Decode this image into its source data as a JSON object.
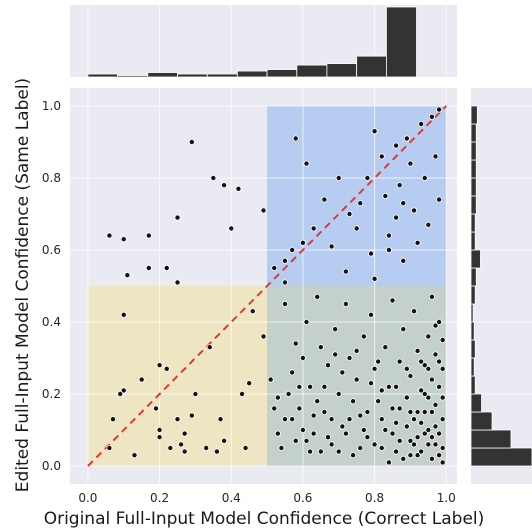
{
  "chart_data": {
    "type": "scatter",
    "xlabel": "Original Full-Input Model Confidence (Correct Label)",
    "ylabel": "Edited Full-Input Model Confidence (Same Label)",
    "xlim": [
      -0.05,
      1.03
    ],
    "ylim": [
      -0.05,
      1.05
    ],
    "xticks": [
      "0.0",
      "0.2",
      "0.4",
      "0.6",
      "0.8",
      "1.0"
    ],
    "yticks": [
      "0.0",
      "0.2",
      "0.4",
      "0.6",
      "0.8",
      "1.0"
    ],
    "grid": true,
    "colors": {
      "background": "#eaeaf2",
      "points": "#111111",
      "diagonal": "#e03a32",
      "region_blue": "#aec7f1",
      "region_yellow": "#eee5bb",
      "region_green": "#bdcbc4",
      "histogram": "#333333"
    },
    "regions": [
      {
        "x": [
          0.5,
          1.0
        ],
        "y": [
          0.5,
          1.0
        ],
        "color": "#aec7f1"
      },
      {
        "x": [
          0.0,
          0.5
        ],
        "y": [
          0.0,
          0.5
        ],
        "color": "#eee5bb"
      },
      {
        "x": [
          0.5,
          1.0
        ],
        "y": [
          0.0,
          0.5
        ],
        "color": "#bdcbc4"
      }
    ],
    "diagonal": {
      "from": [
        0,
        0
      ],
      "to": [
        1,
        1
      ],
      "style": "dashed"
    },
    "top_histogram": {
      "bins": [
        0.0,
        0.083,
        0.167,
        0.25,
        0.333,
        0.417,
        0.5,
        0.583,
        0.667,
        0.75,
        0.833,
        0.917,
        1.0
      ],
      "counts": [
        2,
        1,
        3,
        2,
        2,
        4,
        5,
        8,
        9,
        14,
        47,
        0
      ]
    },
    "right_histogram": {
      "bins": [
        0.0,
        0.05,
        0.1,
        0.15,
        0.2,
        0.25,
        0.3,
        0.35,
        0.4,
        0.45,
        0.5,
        0.55,
        0.6,
        0.65,
        0.7,
        0.75,
        0.8,
        0.85,
        0.9,
        0.95,
        1.0
      ],
      "counts": [
        58,
        38,
        20,
        10,
        4,
        3,
        4,
        3,
        2,
        4,
        5,
        9,
        4,
        4,
        5,
        5,
        5,
        5,
        5,
        6
      ]
    },
    "points": [
      [
        0.06,
        0.64
      ],
      [
        0.1,
        0.63
      ],
      [
        0.17,
        0.64
      ],
      [
        0.29,
        0.9
      ],
      [
        0.35,
        0.8
      ],
      [
        0.38,
        0.78
      ],
      [
        0.42,
        0.77
      ],
      [
        0.25,
        0.69
      ],
      [
        0.4,
        0.66
      ],
      [
        0.49,
        0.71
      ],
      [
        0.11,
        0.53
      ],
      [
        0.17,
        0.55
      ],
      [
        0.22,
        0.55
      ],
      [
        0.25,
        0.51
      ],
      [
        0.58,
        0.91
      ],
      [
        0.61,
        0.84
      ],
      [
        0.55,
        0.57
      ],
      [
        0.57,
        0.6
      ],
      [
        0.6,
        0.62
      ],
      [
        0.63,
        0.66
      ],
      [
        0.66,
        0.74
      ],
      [
        0.68,
        0.61
      ],
      [
        0.7,
        0.8
      ],
      [
        0.73,
        0.7
      ],
      [
        0.75,
        0.66
      ],
      [
        0.76,
        0.73
      ],
      [
        0.78,
        0.8
      ],
      [
        0.79,
        0.59
      ],
      [
        0.8,
        0.52
      ],
      [
        0.82,
        0.86
      ],
      [
        0.83,
        0.75
      ],
      [
        0.84,
        0.64
      ],
      [
        0.86,
        0.89
      ],
      [
        0.86,
        0.69
      ],
      [
        0.87,
        0.78
      ],
      [
        0.88,
        0.57
      ],
      [
        0.89,
        0.91
      ],
      [
        0.9,
        0.84
      ],
      [
        0.91,
        0.71
      ],
      [
        0.92,
        0.62
      ],
      [
        0.93,
        0.95
      ],
      [
        0.94,
        0.8
      ],
      [
        0.95,
        0.67
      ],
      [
        0.96,
        0.97
      ],
      [
        0.97,
        0.86
      ],
      [
        0.98,
        0.74
      ],
      [
        0.98,
        0.99
      ],
      [
        0.52,
        0.55
      ],
      [
        0.55,
        0.51
      ],
      [
        0.88,
        0.73
      ],
      [
        0.8,
        0.93
      ],
      [
        0.72,
        0.54
      ],
      [
        0.84,
        0.6
      ],
      [
        0.1,
        0.42
      ],
      [
        0.06,
        0.05
      ],
      [
        0.07,
        0.13
      ],
      [
        0.1,
        0.21
      ],
      [
        0.09,
        0.2
      ],
      [
        0.13,
        0.03
      ],
      [
        0.2,
        0.08
      ],
      [
        0.2,
        0.1
      ],
      [
        0.2,
        0.28
      ],
      [
        0.22,
        0.27
      ],
      [
        0.25,
        0.13
      ],
      [
        0.26,
        0.06
      ],
      [
        0.27,
        0.09
      ],
      [
        0.29,
        0.14
      ],
      [
        0.3,
        0.2
      ],
      [
        0.33,
        0.05
      ],
      [
        0.34,
        0.33
      ],
      [
        0.36,
        0.04
      ],
      [
        0.37,
        0.13
      ],
      [
        0.38,
        0.07
      ],
      [
        0.43,
        0.2
      ],
      [
        0.45,
        0.23
      ],
      [
        0.44,
        0.05
      ],
      [
        0.46,
        0.43
      ],
      [
        0.49,
        0.36
      ],
      [
        0.19,
        0.16
      ],
      [
        0.23,
        0.05
      ],
      [
        0.15,
        0.24
      ],
      [
        0.27,
        0.04
      ],
      [
        0.51,
        0.24
      ],
      [
        0.53,
        0.19
      ],
      [
        0.55,
        0.45
      ],
      [
        0.55,
        0.13
      ],
      [
        0.57,
        0.26
      ],
      [
        0.58,
        0.34
      ],
      [
        0.59,
        0.16
      ],
      [
        0.6,
        0.3
      ],
      [
        0.61,
        0.4
      ],
      [
        0.62,
        0.22
      ],
      [
        0.63,
        0.09
      ],
      [
        0.64,
        0.47
      ],
      [
        0.65,
        0.33
      ],
      [
        0.66,
        0.15
      ],
      [
        0.67,
        0.28
      ],
      [
        0.68,
        0.06
      ],
      [
        0.69,
        0.38
      ],
      [
        0.7,
        0.2
      ],
      [
        0.71,
        0.11
      ],
      [
        0.72,
        0.45
      ],
      [
        0.73,
        0.3
      ],
      [
        0.74,
        0.03
      ],
      [
        0.75,
        0.24
      ],
      [
        0.76,
        0.14
      ],
      [
        0.77,
        0.36
      ],
      [
        0.78,
        0.08
      ],
      [
        0.79,
        0.42
      ],
      [
        0.8,
        0.27
      ],
      [
        0.81,
        0.18
      ],
      [
        0.82,
        0.05
      ],
      [
        0.83,
        0.33
      ],
      [
        0.84,
        0.22
      ],
      [
        0.85,
        0.46
      ],
      [
        0.86,
        0.12
      ],
      [
        0.87,
        0.29
      ],
      [
        0.87,
        0.07
      ],
      [
        0.88,
        0.38
      ],
      [
        0.89,
        0.19
      ],
      [
        0.9,
        0.03
      ],
      [
        0.9,
        0.25
      ],
      [
        0.91,
        0.43
      ],
      [
        0.91,
        0.13
      ],
      [
        0.92,
        0.32
      ],
      [
        0.92,
        0.08
      ],
      [
        0.93,
        0.21
      ],
      [
        0.93,
        0.04
      ],
      [
        0.94,
        0.28
      ],
      [
        0.94,
        0.15
      ],
      [
        0.95,
        0.36
      ],
      [
        0.95,
        0.1
      ],
      [
        0.96,
        0.02
      ],
      [
        0.96,
        0.24
      ],
      [
        0.96,
        0.47
      ],
      [
        0.97,
        0.06
      ],
      [
        0.97,
        0.17
      ],
      [
        0.97,
        0.31
      ],
      [
        0.98,
        0.09
      ],
      [
        0.98,
        0.03
      ],
      [
        0.98,
        0.22
      ],
      [
        0.98,
        0.4
      ],
      [
        0.99,
        0.13
      ],
      [
        0.99,
        0.05
      ],
      [
        0.99,
        0.27
      ],
      [
        0.99,
        0.01
      ],
      [
        0.95,
        0.06
      ],
      [
        0.94,
        0.09
      ],
      [
        0.93,
        0.12
      ],
      [
        0.92,
        0.03
      ],
      [
        0.9,
        0.07
      ],
      [
        0.89,
        0.11
      ],
      [
        0.88,
        0.02
      ],
      [
        0.97,
        0.11
      ],
      [
        0.96,
        0.08
      ],
      [
        0.95,
        0.19
      ],
      [
        0.86,
        0.04
      ],
      [
        0.85,
        0.09
      ],
      [
        0.84,
        0.01
      ],
      [
        0.82,
        0.13
      ],
      [
        0.81,
        0.29
      ],
      [
        0.79,
        0.23
      ],
      [
        0.78,
        0.15
      ],
      [
        0.76,
        0.05
      ],
      [
        0.74,
        0.18
      ],
      [
        0.72,
        0.09
      ],
      [
        0.7,
        0.04
      ],
      [
        0.68,
        0.13
      ],
      [
        0.66,
        0.22
      ],
      [
        0.64,
        0.18
      ],
      [
        0.62,
        0.04
      ],
      [
        0.6,
        0.1
      ],
      [
        0.58,
        0.07
      ],
      [
        0.56,
        0.2
      ],
      [
        0.54,
        0.05
      ],
      [
        0.52,
        0.16
      ],
      [
        0.99,
        0.19
      ],
      [
        0.99,
        0.35
      ],
      [
        0.98,
        0.29
      ],
      [
        0.97,
        0.39
      ],
      [
        0.96,
        0.15
      ],
      [
        0.95,
        0.27
      ],
      [
        0.94,
        0.2
      ],
      [
        0.93,
        0.29
      ],
      [
        0.92,
        0.15
      ],
      [
        0.91,
        0.06
      ],
      [
        0.9,
        0.15
      ],
      [
        0.89,
        0.27
      ],
      [
        0.87,
        0.16
      ],
      [
        0.86,
        0.22
      ],
      [
        0.85,
        0.16
      ],
      [
        0.83,
        0.1
      ],
      [
        0.82,
        0.21
      ],
      [
        0.8,
        0.06
      ],
      [
        0.77,
        0.1
      ],
      [
        0.75,
        0.32
      ],
      [
        0.73,
        0.13
      ],
      [
        0.71,
        0.26
      ],
      [
        0.69,
        0.31
      ],
      [
        0.67,
        0.08
      ],
      [
        0.65,
        0.04
      ],
      [
        0.63,
        0.14
      ],
      [
        0.61,
        0.07
      ],
      [
        0.59,
        0.22
      ],
      [
        0.57,
        0.13
      ],
      [
        0.53,
        0.09
      ]
    ]
  }
}
